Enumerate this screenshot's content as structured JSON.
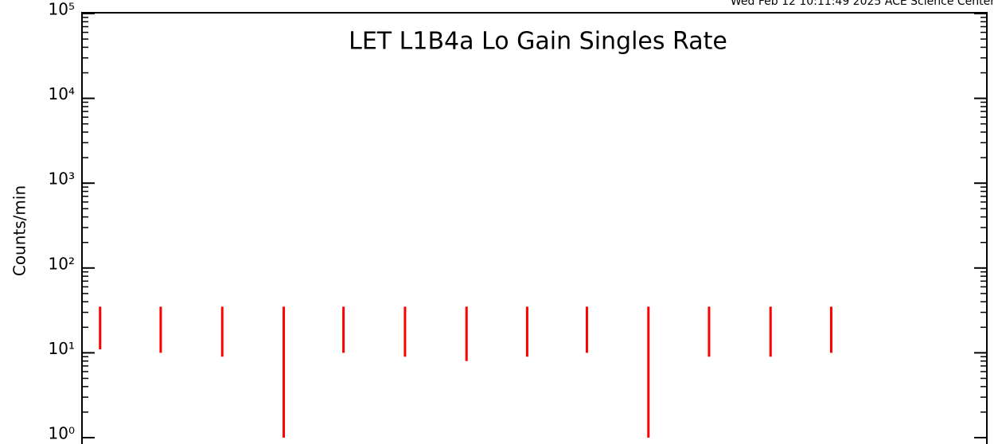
{
  "chart_data": {
    "type": "spike",
    "header": "Wed Feb 12 10:11:49 2025 ACE Science Center",
    "title": "LET L1B4a Lo Gain Singles Rate",
    "ylabel": "Counts/min",
    "log_y": true,
    "color": "#ff0000",
    "title_color": "#0000ff",
    "xlim": [
      0,
      100
    ],
    "x": [
      2.0,
      8.7,
      15.5,
      22.3,
      28.9,
      35.7,
      42.5,
      49.2,
      55.8,
      62.6,
      69.3,
      76.1,
      82.8
    ],
    "lows": [
      11,
      10,
      9,
      1,
      10,
      9,
      8,
      9,
      10,
      1,
      9,
      9,
      10
    ],
    "highs": [
      35,
      35,
      35,
      35,
      35,
      35,
      35,
      35,
      35,
      35,
      35,
      35,
      35
    ],
    "ylim": [
      1,
      100000
    ],
    "yticks": [
      {
        "value": 1,
        "label": "10⁰"
      },
      {
        "value": 10,
        "label": "10¹"
      },
      {
        "value": 100,
        "label": "10²"
      },
      {
        "value": 1000,
        "label": "10³"
      },
      {
        "value": 10000,
        "label": "10⁴"
      },
      {
        "value": 100000,
        "label": "10⁵"
      }
    ]
  }
}
